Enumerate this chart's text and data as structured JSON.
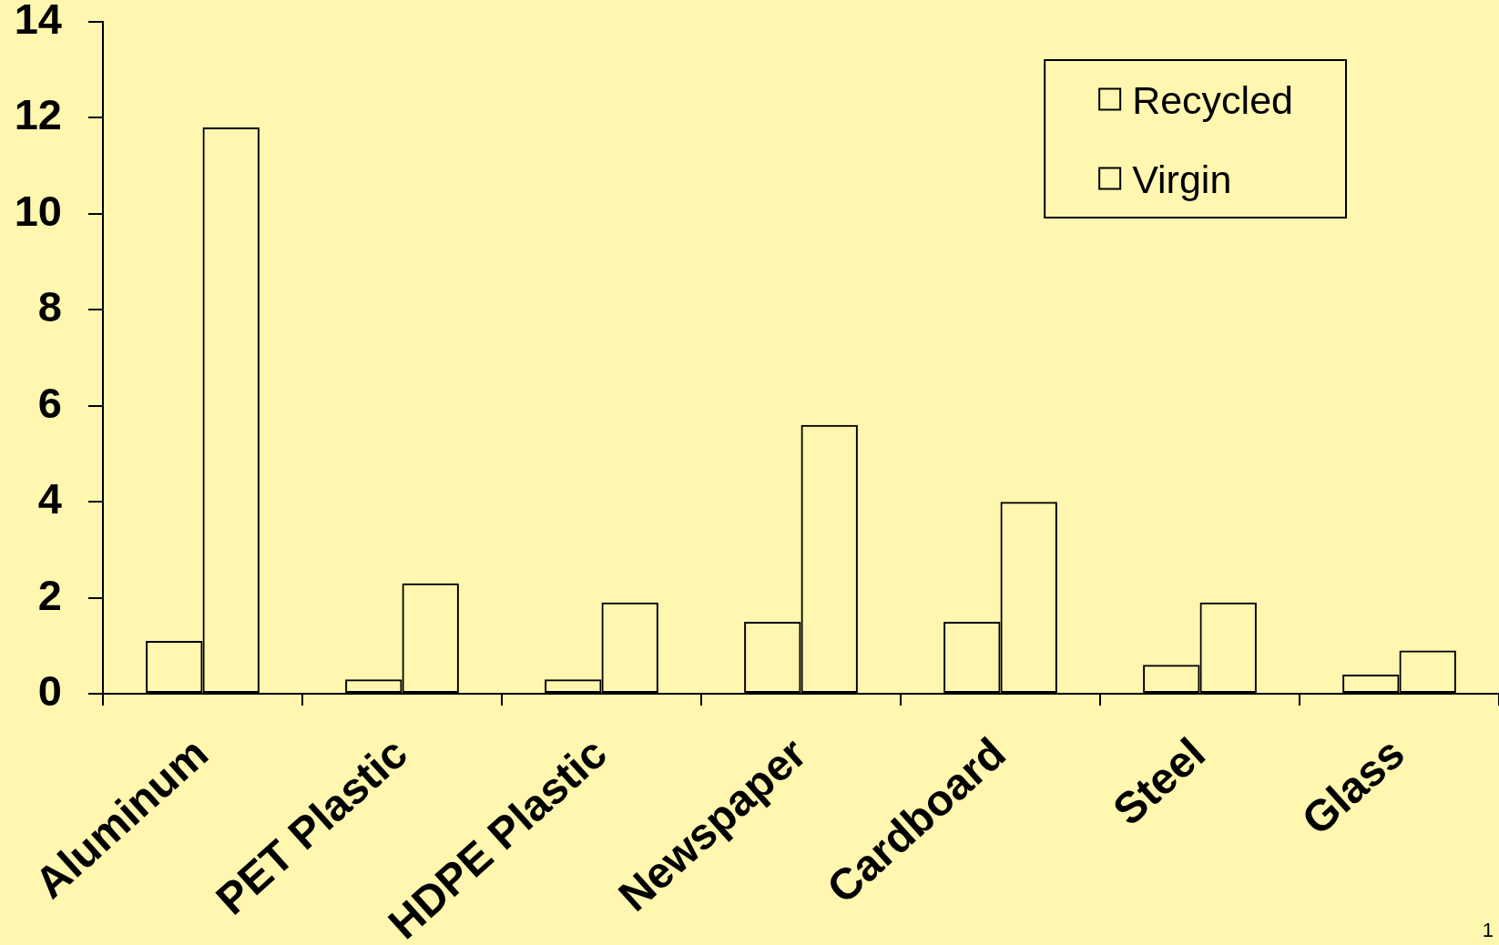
{
  "chart_data": {
    "type": "bar",
    "categories": [
      "Aluminum",
      "PET Plastic",
      "HDPE Plastic",
      "Newspaper",
      "Cardboard",
      "Steel",
      "Glass"
    ],
    "series": [
      {
        "name": "Recycled",
        "color": "#000000",
        "values": [
          1.1,
          0.3,
          0.3,
          1.5,
          1.5,
          0.6,
          0.4
        ]
      },
      {
        "name": "Virgin",
        "color": "#000000",
        "values": [
          11.8,
          2.3,
          1.9,
          5.6,
          4.0,
          1.9,
          0.9
        ]
      }
    ],
    "ylim": [
      0,
      14
    ],
    "yticks": [
      0,
      2,
      4,
      6,
      8,
      10,
      12,
      14
    ],
    "legend": "top right",
    "annotations": [
      "1"
    ]
  }
}
